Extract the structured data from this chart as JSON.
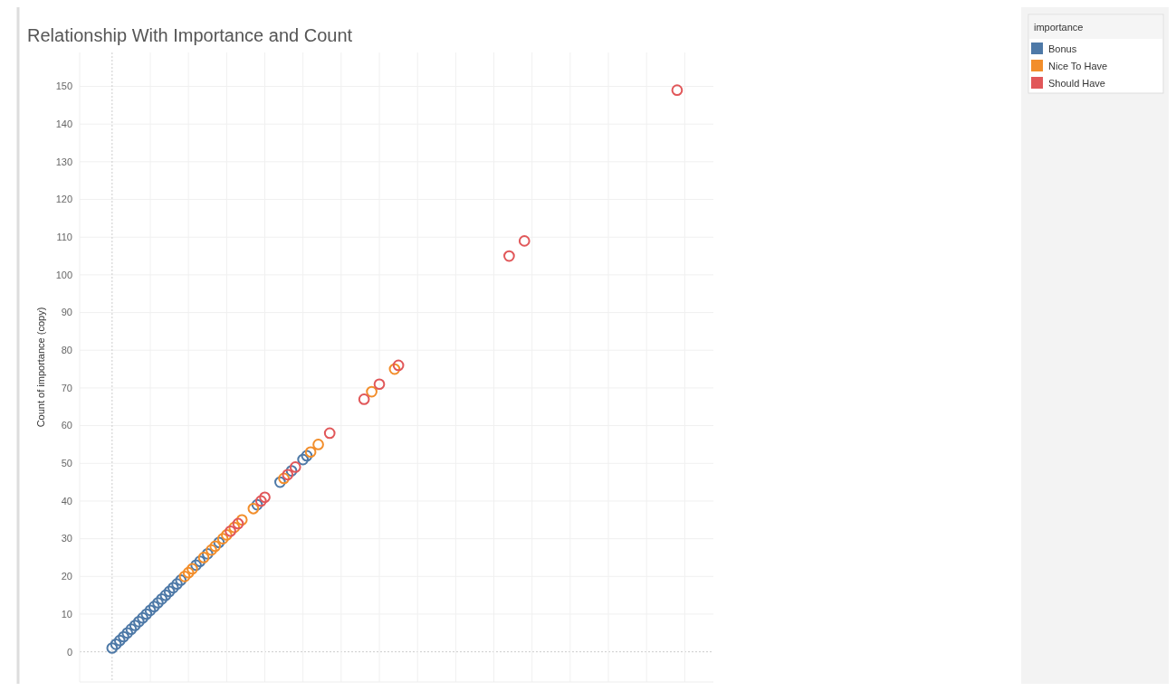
{
  "chart_data": {
    "type": "scatter",
    "title": "Relationship With Importance and Count",
    "ylabel": "Count of importance (copy)",
    "legend_title": "importance",
    "legend": "top right",
    "grid": true,
    "marker": "circle",
    "tick_labels": "y",
    "categories": [
      null,
      null,
      null,
      null,
      null,
      null,
      null,
      null,
      null,
      null,
      null,
      null,
      null,
      null,
      null,
      null,
      null,
      null,
      null,
      null,
      null,
      null,
      null,
      null,
      null,
      null,
      null,
      null,
      null,
      null,
      null,
      null,
      null,
      null,
      null,
      null,
      null,
      null,
      null,
      null,
      null,
      null,
      null,
      null,
      null,
      null,
      null,
      null,
      null,
      null,
      null,
      null,
      null,
      null,
      null,
      null,
      null,
      null,
      null,
      null,
      null,
      null,
      null,
      null,
      null,
      null,
      null,
      null,
      null,
      null,
      null,
      null,
      null,
      null,
      null,
      null,
      null,
      null,
      null,
      null,
      null,
      null,
      null,
      null,
      null,
      null,
      null,
      null,
      null,
      null,
      null,
      null,
      null,
      null,
      null,
      null,
      null,
      null,
      null,
      null,
      null,
      null,
      null,
      null,
      null,
      null,
      null,
      null,
      null,
      null,
      null,
      null,
      null,
      null,
      null,
      null,
      null,
      null,
      null,
      null,
      null,
      null,
      null,
      null,
      null,
      null,
      null,
      null,
      null,
      null,
      null,
      null,
      null,
      null,
      null,
      null,
      null,
      null,
      null,
      null,
      null,
      null,
      null,
      null,
      null,
      null,
      null,
      null,
      null,
      null,
      null,
      null,
      null,
      null,
      null,
      null,
      null,
      null,
      null,
      null,
      null,
      null,
      null,
      null,
      null,
      null
    ],
    "ylim": [
      -8,
      159
    ],
    "yticks": [
      0,
      10,
      20,
      30,
      40,
      50,
      60,
      70,
      80,
      90,
      100,
      110,
      120,
      130,
      140,
      150
    ],
    "series": [
      {
        "name": "Bonus",
        "color": "#4e79a7",
        "values": [
          null,
          null,
          null,
          null,
          null,
          null,
          null,
          null,
          1,
          2,
          3,
          4,
          5,
          6,
          7,
          8,
          9,
          10,
          11,
          12,
          13,
          14,
          15,
          16,
          17,
          18,
          19,
          null,
          null,
          null,
          23,
          24,
          null,
          26,
          null,
          null,
          29,
          null,
          null,
          null,
          null,
          null,
          null,
          null,
          null,
          null,
          39,
          null,
          null,
          null,
          null,
          null,
          45,
          null,
          null,
          48,
          null,
          null,
          51,
          52,
          null,
          null,
          null,
          null,
          null,
          null,
          null,
          null,
          null,
          null,
          null,
          null,
          null,
          null,
          null,
          null,
          null,
          null,
          null,
          null,
          null,
          null,
          null,
          null,
          null,
          null,
          null,
          null,
          null,
          null,
          null,
          null,
          null,
          null,
          null,
          null,
          null,
          null,
          null,
          null,
          null,
          null,
          null,
          null,
          null,
          null,
          null,
          null,
          null,
          null,
          null,
          null,
          null,
          null,
          null,
          null,
          null,
          null,
          null,
          null,
          null,
          null,
          null,
          null,
          null,
          null,
          null,
          null,
          null,
          null,
          null,
          null,
          null,
          null,
          null,
          null,
          null,
          null,
          null,
          null,
          null,
          null,
          null,
          null,
          null,
          null,
          null,
          null,
          null,
          null,
          null,
          null,
          null,
          null,
          null,
          null,
          null,
          null,
          null,
          null,
          null,
          null,
          null,
          null,
          null,
          null
        ]
      },
      {
        "name": "Nice To Have",
        "color": "#f28e2b",
        "values": [
          null,
          null,
          null,
          null,
          null,
          null,
          null,
          null,
          null,
          null,
          null,
          null,
          null,
          null,
          null,
          null,
          null,
          null,
          null,
          null,
          null,
          null,
          null,
          null,
          null,
          null,
          null,
          20,
          21,
          22,
          null,
          null,
          25,
          null,
          27,
          28,
          null,
          30,
          31,
          null,
          33,
          null,
          35,
          null,
          null,
          38,
          null,
          null,
          null,
          null,
          null,
          null,
          null,
          46,
          null,
          null,
          null,
          null,
          null,
          null,
          53,
          null,
          55,
          null,
          null,
          null,
          null,
          null,
          null,
          null,
          null,
          null,
          null,
          null,
          null,
          null,
          69,
          null,
          null,
          null,
          null,
          null,
          75,
          null,
          null,
          null,
          null,
          null,
          null,
          null,
          null,
          null,
          null,
          null,
          null,
          null,
          null,
          null,
          null,
          null,
          null,
          null,
          null,
          null,
          null,
          null,
          null,
          null,
          null,
          null,
          null,
          null,
          null,
          null,
          null,
          null,
          null,
          null,
          null,
          null,
          null,
          null,
          null,
          null,
          null,
          null,
          null,
          null,
          null,
          null,
          null,
          null,
          null,
          null,
          null,
          null,
          null,
          null,
          null,
          null,
          null,
          null,
          null,
          null,
          null,
          null,
          null,
          null,
          null,
          null,
          null,
          null,
          null,
          null,
          null,
          null,
          null,
          null,
          null,
          null,
          null,
          null,
          null,
          null,
          null,
          null
        ]
      },
      {
        "name": "Should Have",
        "color": "#e15759",
        "values": [
          null,
          null,
          null,
          null,
          null,
          null,
          null,
          null,
          null,
          null,
          null,
          null,
          null,
          null,
          null,
          null,
          null,
          null,
          null,
          null,
          null,
          null,
          null,
          null,
          null,
          null,
          null,
          null,
          null,
          null,
          null,
          null,
          null,
          null,
          null,
          null,
          null,
          null,
          null,
          32,
          null,
          34,
          null,
          null,
          null,
          null,
          null,
          40,
          41,
          null,
          null,
          null,
          null,
          null,
          47,
          null,
          49,
          null,
          null,
          null,
          null,
          null,
          null,
          null,
          null,
          58,
          null,
          null,
          null,
          null,
          null,
          null,
          null,
          null,
          67,
          null,
          null,
          null,
          71,
          null,
          null,
          null,
          null,
          76,
          null,
          null,
          null,
          null,
          null,
          null,
          null,
          null,
          null,
          null,
          null,
          null,
          null,
          null,
          null,
          null,
          null,
          null,
          null,
          null,
          null,
          null,
          null,
          null,
          null,
          null,
          null,
          null,
          105,
          null,
          null,
          null,
          109,
          null,
          null,
          null,
          null,
          null,
          null,
          null,
          null,
          null,
          null,
          null,
          null,
          null,
          null,
          null,
          null,
          null,
          null,
          null,
          null,
          null,
          null,
          null,
          null,
          null,
          null,
          null,
          null,
          null,
          null,
          null,
          null,
          null,
          null,
          null,
          null,
          null,
          null,
          null,
          149,
          null,
          null,
          null,
          null,
          null,
          null,
          null,
          null,
          null
        ]
      }
    ]
  }
}
